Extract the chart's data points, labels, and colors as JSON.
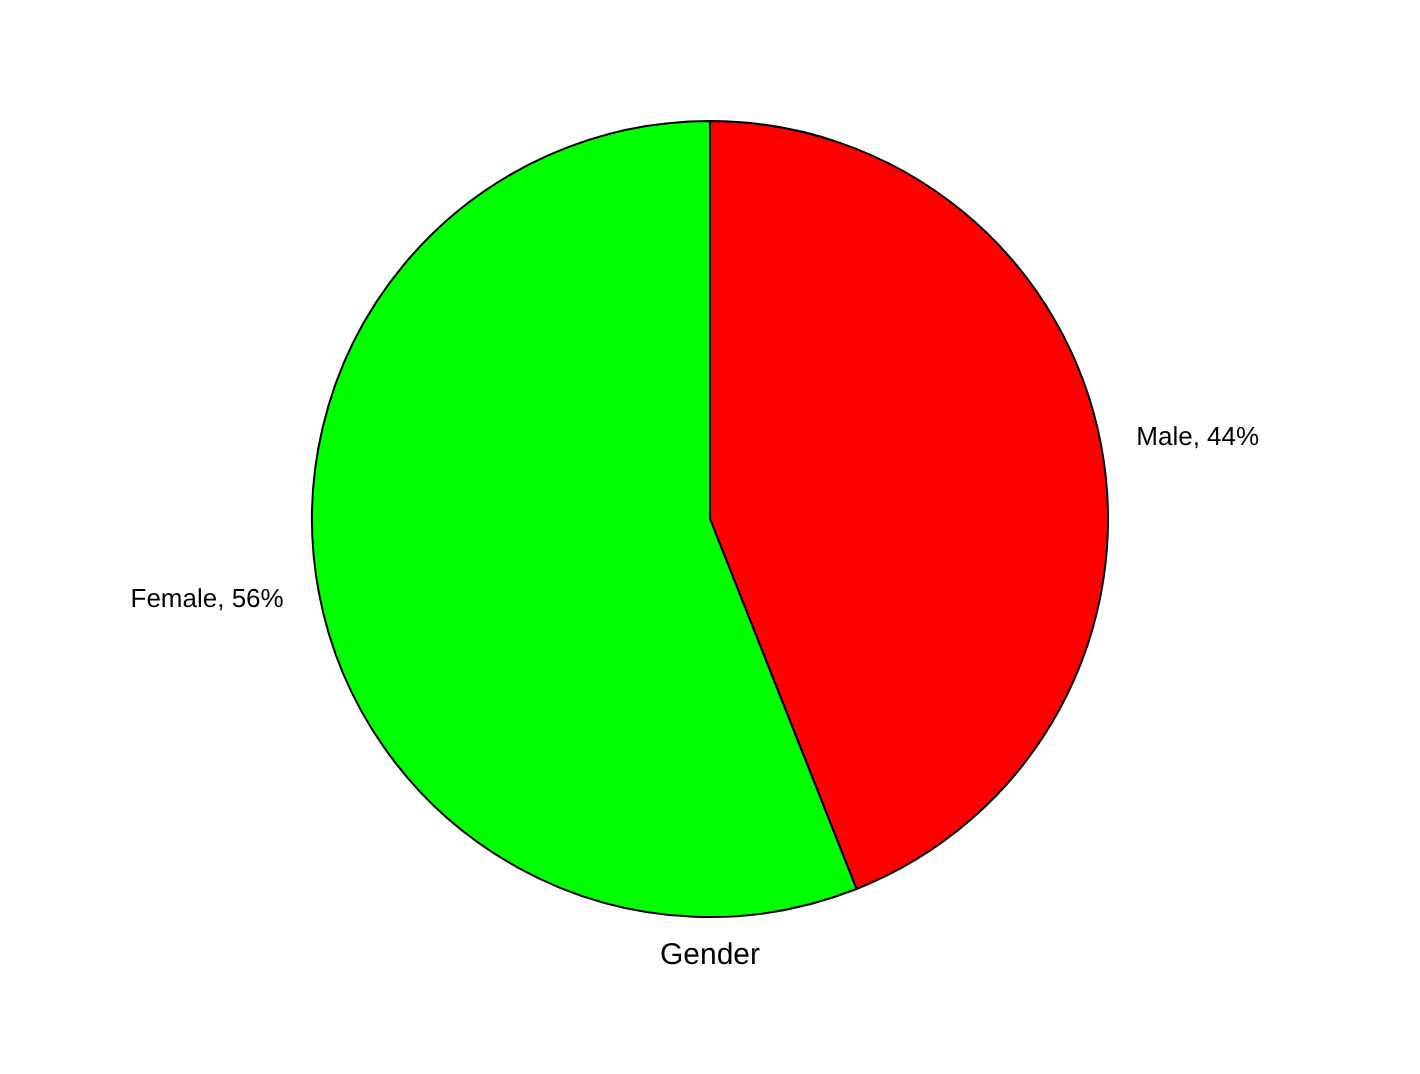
{
  "chart_data": {
    "type": "pie",
    "title": "Gender",
    "categories": [
      "Male",
      "Female"
    ],
    "values": [
      44,
      56
    ],
    "colors": [
      "#ff0000",
      "#00ff00"
    ],
    "value_labels": [
      ", 44%",
      ", 56%"
    ],
    "legend": false
  }
}
